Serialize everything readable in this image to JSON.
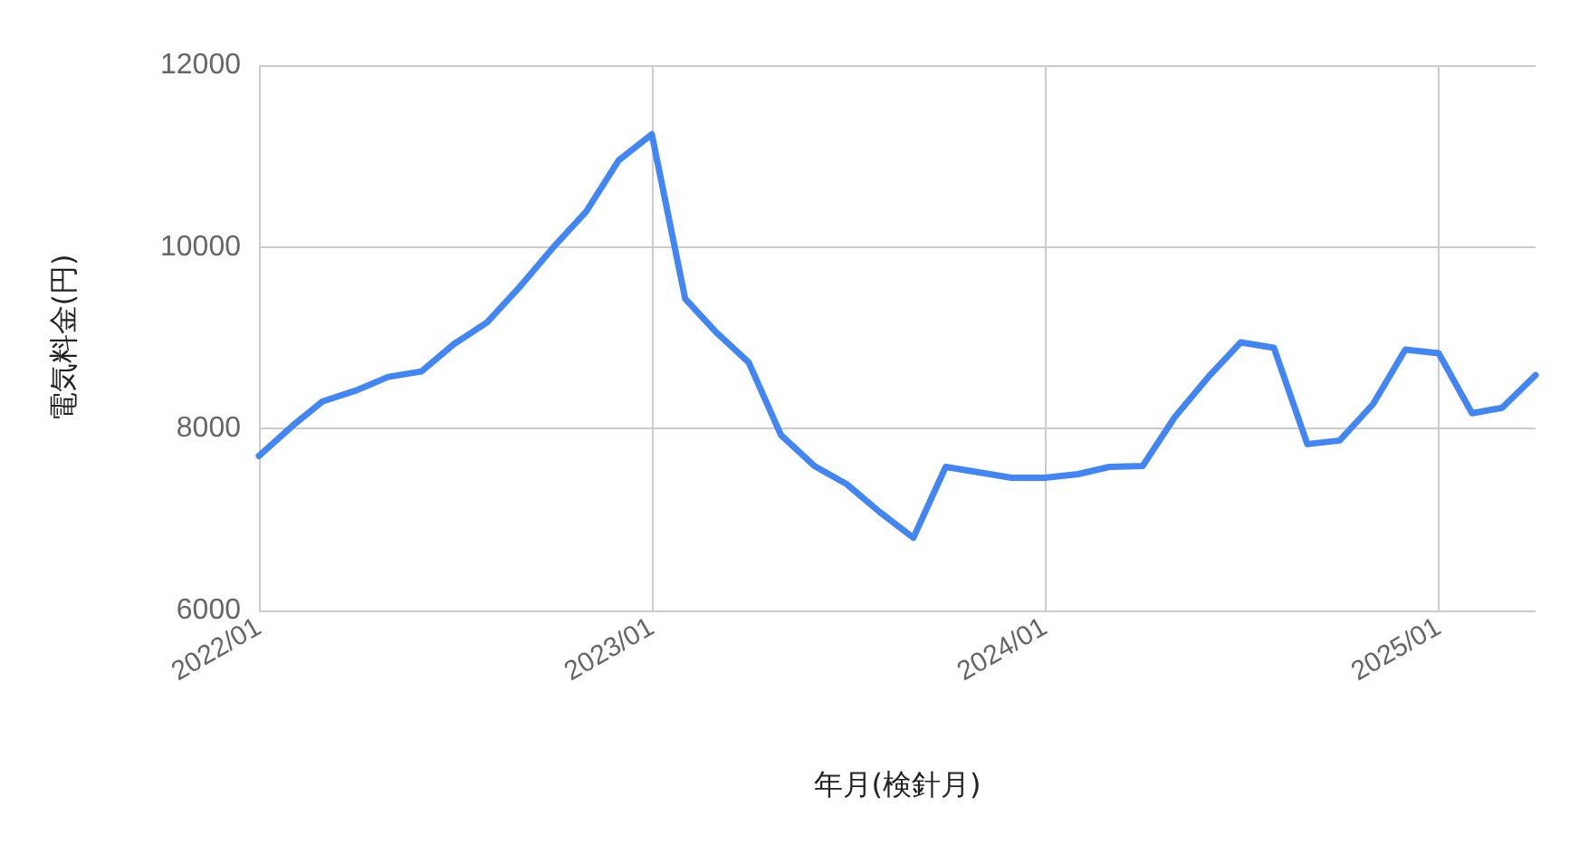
{
  "chart_data": {
    "type": "line",
    "xlabel": "年月(検針月)",
    "ylabel": "電気料金(円)",
    "x": [
      "2022-01",
      "2022-02",
      "2022-03",
      "2022-04",
      "2022-05",
      "2022-06",
      "2022-07",
      "2022-08",
      "2022-09",
      "2022-10",
      "2022-11",
      "2022-12",
      "2023-01",
      "2023-02",
      "2023-03",
      "2023-04",
      "2023-05",
      "2023-06",
      "2023-07",
      "2023-08",
      "2023-09",
      "2023-10",
      "2023-11",
      "2023-12",
      "2024-01",
      "2024-02",
      "2024-03",
      "2024-04",
      "2024-05",
      "2024-06",
      "2024-07",
      "2024-08",
      "2024-09",
      "2024-10",
      "2024-11",
      "2024-12",
      "2025-01",
      "2025-02",
      "2025-03",
      "2025-04"
    ],
    "series": [
      {
        "color": "#4285f4",
        "values": [
          7700,
          8030,
          8300,
          8420,
          8570,
          8630,
          8930,
          9170,
          9570,
          9990,
          10390,
          10950,
          11240,
          9430,
          9070,
          8730,
          7930,
          7590,
          7390,
          7080,
          6800,
          7580,
          7520,
          7460,
          7460,
          7500,
          7580,
          7590,
          8130,
          8570,
          8950,
          8890,
          7830,
          7870,
          8270,
          8870,
          8830,
          8170,
          8230,
          8590
        ]
      }
    ],
    "xlim": [
      "2022-01",
      "2025-04"
    ],
    "xticks": [
      {
        "value": "2022-01",
        "label": "2022/01"
      },
      {
        "value": "2023-01",
        "label": "2023/01"
      },
      {
        "value": "2024-01",
        "label": "2024/01"
      },
      {
        "value": "2025-01",
        "label": "2025/01"
      }
    ],
    "ylim": [
      6000,
      12000
    ],
    "yticks": [
      6000,
      8000,
      10000,
      12000
    ],
    "grid": true,
    "marker": "none",
    "line_style": "solid"
  }
}
